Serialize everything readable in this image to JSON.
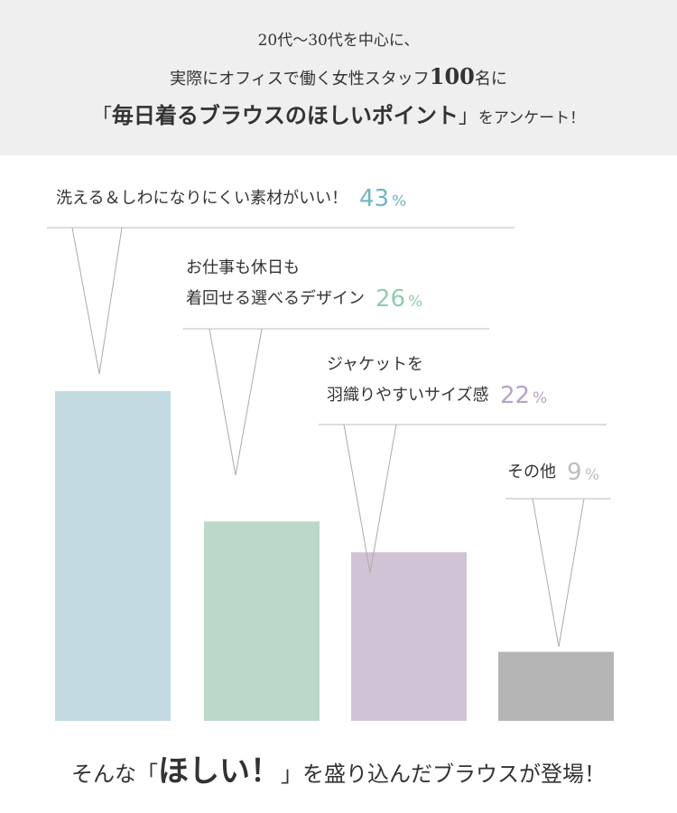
{
  "header": {
    "line1": "20代〜30代を中心に、",
    "line2_pre": "実際にオフィスで働く女性スタッフ",
    "line2_num": "100",
    "line2_post": "名に",
    "line3_open": "「",
    "line3_bold": "毎日着るブラウスのほしいポイント",
    "line3_close": "」",
    "line3_post": "をアンケート！"
  },
  "chart_data": {
    "type": "bar",
    "categories": [
      [
        "洗える＆しわになりにくい素材がいい！"
      ],
      [
        "お仕事も休日も",
        "着回せる選べるデザイン"
      ],
      [
        "ジャケットを",
        "羽織りやすいサイズ感"
      ],
      [
        "その他"
      ]
    ],
    "values": [
      43,
      26,
      22,
      9
    ],
    "unit": "%",
    "colors": [
      "#c1dbe0",
      "#bad9c8",
      "#d1c3d6",
      "#b4b4b4"
    ],
    "label_colors": [
      "#6fb6c4",
      "#8ccfb0",
      "#b9a1c6",
      "#bdbdbd"
    ]
  },
  "footer": {
    "pre": "そんな",
    "open": "「",
    "big": "ほしい！",
    "close": "」",
    "post": "を盛り込んだブラウスが登場！"
  }
}
